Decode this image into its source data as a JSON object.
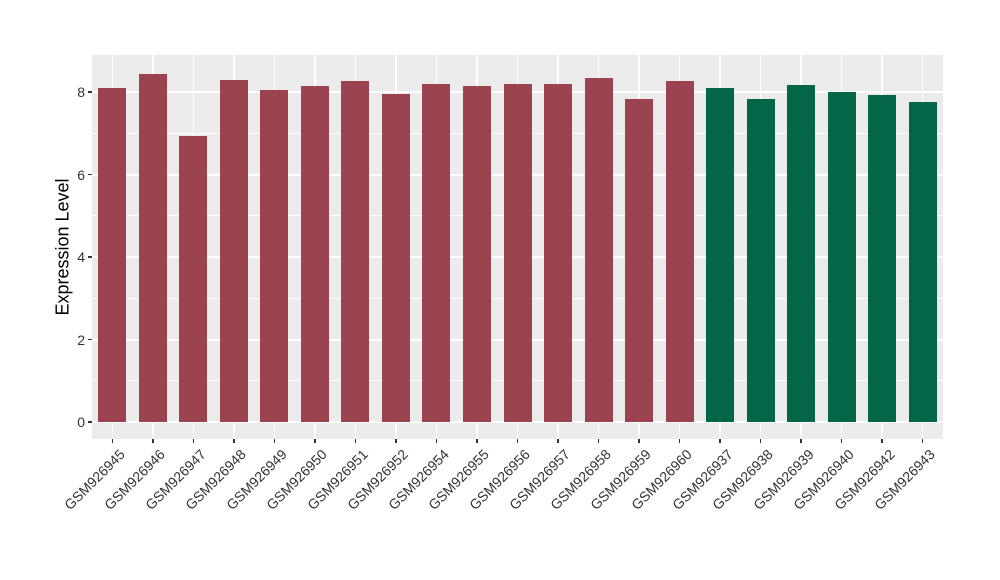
{
  "chart_data": {
    "type": "bar",
    "title": "",
    "xlabel": "",
    "ylabel": "Expression Level",
    "ylim": [
      -0.41,
      8.9
    ],
    "yticks": [
      0,
      2,
      4,
      6,
      8
    ],
    "minor_gridlines": [
      1,
      3,
      5,
      7
    ],
    "grid": true,
    "legend_position": "none",
    "categories": [
      "GSM926945",
      "GSM926946",
      "GSM926947",
      "GSM926948",
      "GSM926949",
      "GSM926950",
      "GSM926951",
      "GSM926952",
      "GSM926954",
      "GSM926955",
      "GSM926956",
      "GSM926957",
      "GSM926958",
      "GSM926959",
      "GSM926960",
      "GSM926937",
      "GSM926938",
      "GSM926939",
      "GSM926940",
      "GSM926942",
      "GSM926943"
    ],
    "values": [
      8.1,
      8.44,
      6.94,
      8.29,
      8.05,
      8.14,
      8.27,
      7.96,
      8.19,
      8.16,
      8.19,
      8.19,
      8.35,
      7.84,
      8.27,
      8.09,
      7.83,
      8.17,
      8.0,
      7.92,
      7.75
    ],
    "groups": [
      "group1",
      "group1",
      "group1",
      "group1",
      "group1",
      "group1",
      "group1",
      "group1",
      "group1",
      "group1",
      "group1",
      "group1",
      "group1",
      "group1",
      "group1",
      "group2",
      "group2",
      "group2",
      "group2",
      "group2",
      "group2"
    ],
    "group_colors": {
      "group1": "#9b4450",
      "group2": "#046649"
    },
    "panel_background": "#ebebeb",
    "grid_color": "#ffffff",
    "axis_text_color": "#333333",
    "axis_title_color": "#000000"
  }
}
